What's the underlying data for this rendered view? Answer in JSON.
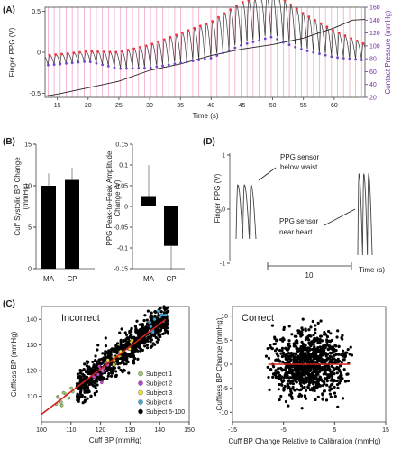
{
  "colors": {
    "ppg": "#333333",
    "peak": "#e8383d",
    "trough": "#6b47c8",
    "pressure": "#222222",
    "sync": "#f2a7c8",
    "fit": "#d42020",
    "purple_axis": "#7a2ea0"
  },
  "panelA": {
    "label": "(A)",
    "ylabel": "Finger PPG (V)",
    "y2label": "Contact Pressure (mmHg)",
    "xlabel": "Time (s)",
    "xticks": [
      "15",
      "20",
      "25",
      "30",
      "35",
      "40",
      "45",
      "50",
      "55",
      "60"
    ],
    "yticks": [
      "0.5",
      "0",
      "-0.5"
    ],
    "y2ticks": [
      "160",
      "140",
      "120",
      "100",
      "80",
      "60",
      "40",
      "20"
    ]
  },
  "panelB": {
    "label": "(B)",
    "left": {
      "ylabel1": "Cuff Systolic BP Change",
      "ylabel2": "(mmHg)",
      "yticks": [
        "15",
        "10",
        "5",
        "0"
      ]
    },
    "right": {
      "ylabel1": "PPG Peak-to-Peak Amplitude",
      "ylabel2": "Change (V)",
      "yticks": [
        "0.15",
        "0.1",
        "0.05",
        "0",
        "-0.05",
        "-0.1",
        "-0.15"
      ]
    },
    "categories": [
      "MA",
      "CP"
    ]
  },
  "panelC": {
    "label": "(C)",
    "left": {
      "title": "Incorrect",
      "ylabel": "Cuffless BP (mmHg)",
      "xlabel": "Cuff BP (mmHg)",
      "xticks": [
        "100",
        "110",
        "120",
        "130",
        "140",
        "150"
      ],
      "yticks": [
        "140",
        "130",
        "120",
        "110"
      ]
    },
    "right": {
      "title": "Correct",
      "ylabel1": "Cuffless BP Change (mmHg)",
      "xlabel": "Cuff BP Change Relative to Calibration (mmHg)",
      "xticks": [
        "-15",
        "-5",
        "5",
        "15"
      ],
      "yticks": [
        "10",
        "5",
        "0",
        "-5",
        "-10"
      ]
    },
    "legend": [
      {
        "label": "Subject 1",
        "color": "#9ec86a"
      },
      {
        "label": "Subject 2",
        "color": "#c045c8"
      },
      {
        "label": "Subject 3",
        "color": "#f0e030"
      },
      {
        "label": "Subject 4",
        "color": "#3fa8e0"
      },
      {
        "label": "Subject 5-100",
        "color": "#000000"
      }
    ]
  },
  "panelD": {
    "label": "(D)",
    "ylabel": "Finger PPG (V)",
    "yticks": [
      "1",
      "0",
      "-1"
    ],
    "annot_below": [
      "PPG sensor",
      "below waist"
    ],
    "annot_heart": [
      "PPG sensor",
      "near heart"
    ],
    "scale": "10",
    "xlabel": "Time (s)"
  },
  "chart_data": [
    {
      "type": "line",
      "title": "",
      "xlabel": "Time (s)",
      "ylabel": "Finger PPG (V)",
      "y2label": "Contact Pressure (mmHg)",
      "xlim": [
        13,
        65
      ],
      "ylim": [
        -0.55,
        0.55
      ],
      "y2lim": [
        20,
        160
      ],
      "series": [
        {
          "name": "",
          "x": [
            13,
            20,
            25,
            30,
            35,
            40,
            45,
            50,
            55,
            60,
            65
          ],
          "values": [
            -0.1,
            -0.05,
            -0.1,
            -0.05,
            0.05,
            0.15,
            0.35,
            0.45,
            0.25,
            0.1,
            0.0
          ]
        },
        {
          "name": "",
          "axis": "right",
          "x": [
            13,
            15,
            20,
            25,
            30,
            35,
            40,
            45,
            50,
            55,
            60,
            63,
            65
          ],
          "values": [
            22,
            25,
            35,
            45,
            62,
            72,
            85,
            95,
            102,
            112,
            128,
            140,
            141
          ]
        }
      ]
    },
    {
      "type": "bar",
      "categories": [
        "MA",
        "CP"
      ],
      "ylabel": "Cuff Systolic BP Change (mmHg)",
      "ylim": [
        0,
        15
      ],
      "values": [
        10.0,
        10.7
      ],
      "error": [
        1.5,
        1.5
      ]
    },
    {
      "type": "bar",
      "categories": [
        "MA",
        "CP"
      ],
      "ylabel": "PPG Peak-to-Peak Amplitude Change (V)",
      "ylim": [
        -0.15,
        0.15
      ],
      "values": [
        0.025,
        -0.095
      ],
      "error": [
        0.075,
        0.06
      ]
    },
    {
      "type": "scatter",
      "title": "Incorrect",
      "xlabel": "Cuff BP (mmHg)",
      "ylabel": "Cuffless BP (mmHg)",
      "xlim": [
        100,
        150
      ],
      "ylim": [
        100,
        145
      ],
      "fit": {
        "x": [
          100,
          142
        ],
        "y": [
          103,
          140
        ]
      }
    },
    {
      "type": "scatter",
      "title": "Correct",
      "xlabel": "Cuff BP Change Relative to Calibration (mmHg)",
      "ylabel": "Cuffless BP Change (mmHg)",
      "xlim": [
        -15,
        15
      ],
      "ylim": [
        -12,
        12
      ],
      "fit": {
        "x": [
          -8,
          8
        ],
        "y": [
          0,
          0
        ]
      }
    },
    {
      "type": "line",
      "ylabel": "Finger PPG (V)",
      "xlabel": "Time (s)",
      "ylim": [
        -1,
        1
      ]
    }
  ]
}
